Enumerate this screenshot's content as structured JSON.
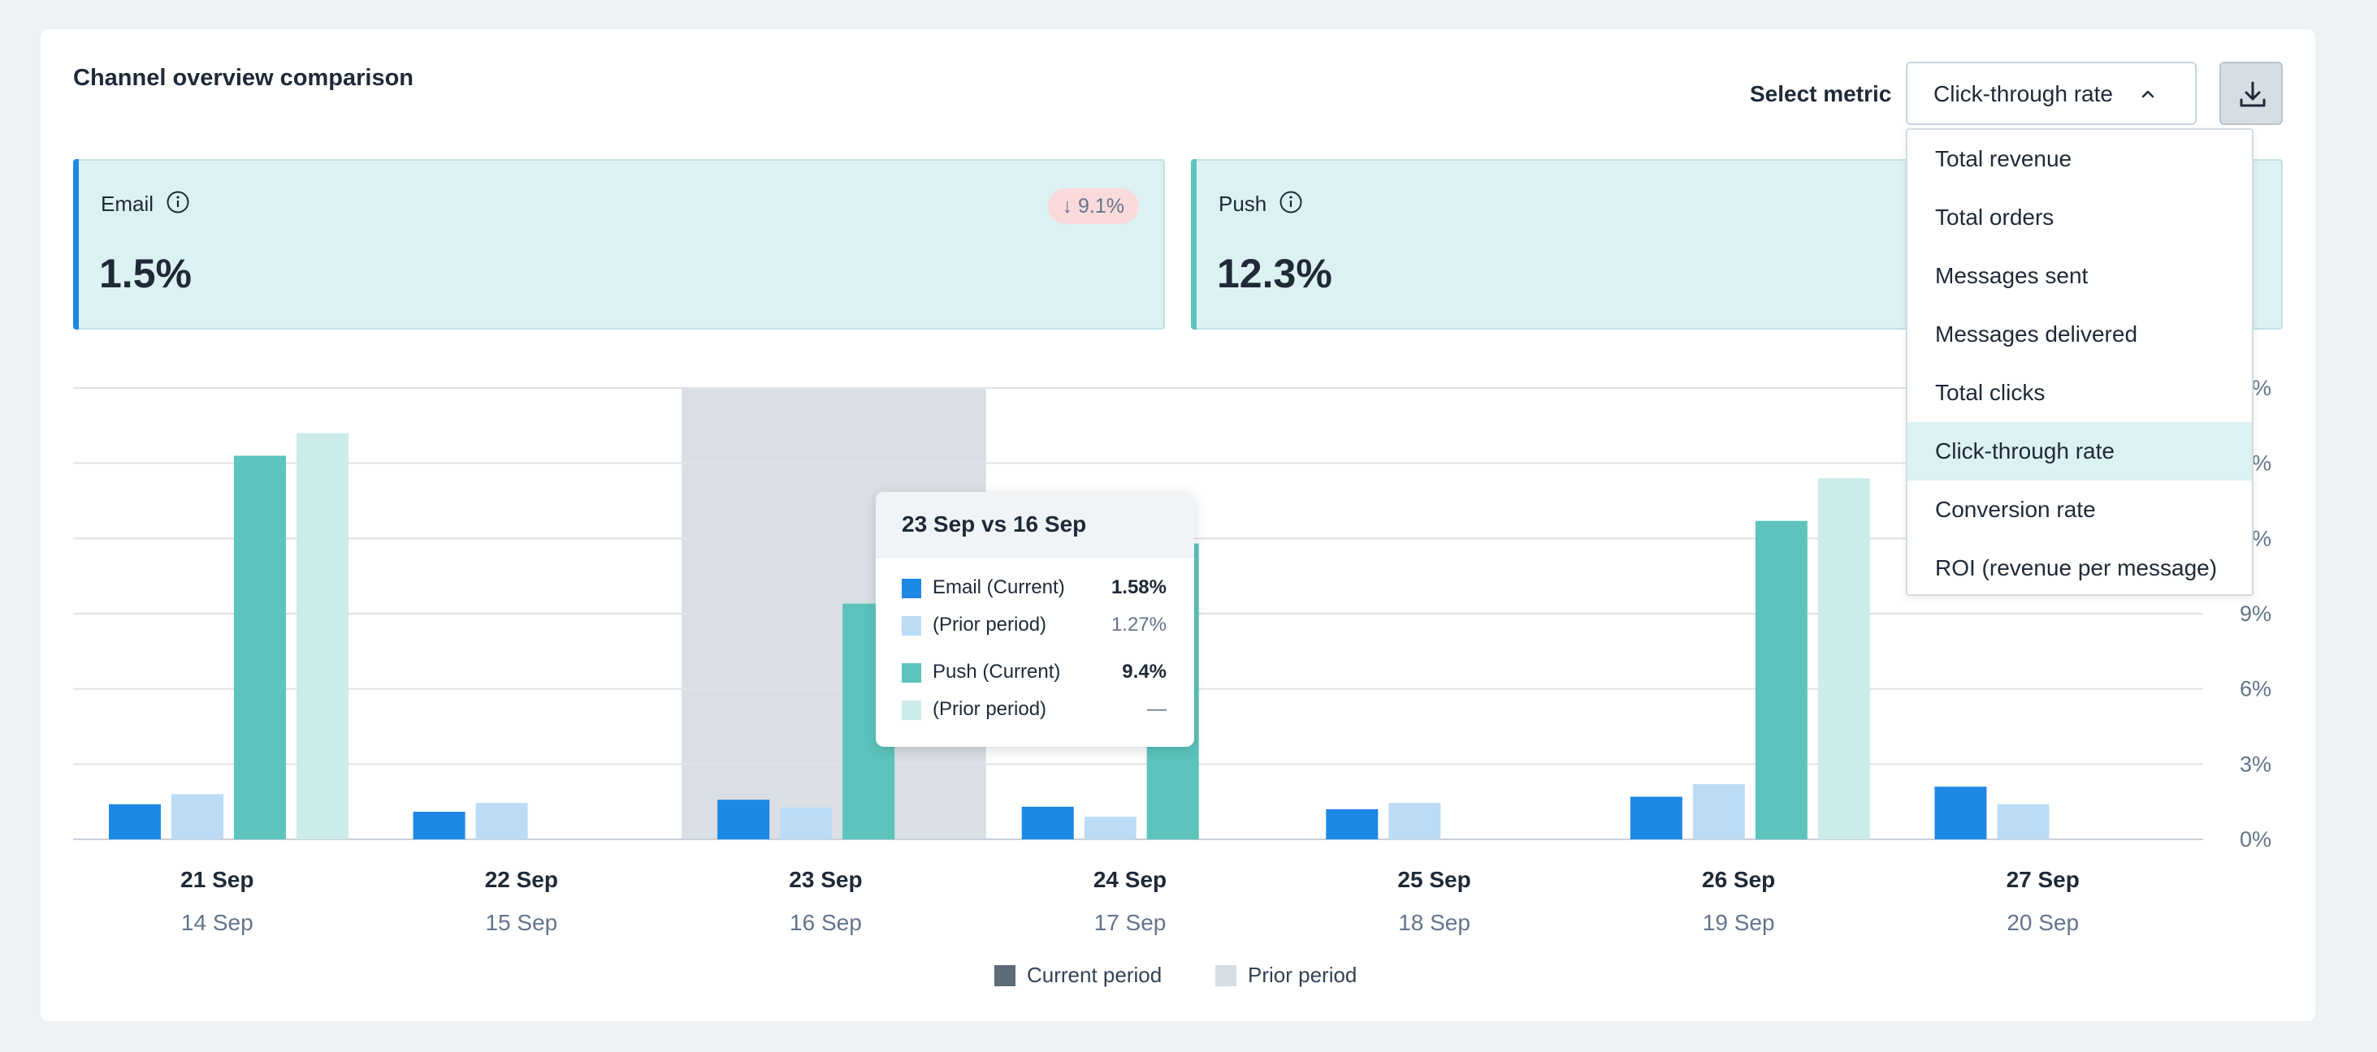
{
  "title": "Channel overview comparison",
  "select_metric_label": "Select metric",
  "selected_metric": "Click-through rate",
  "dropdown_options": [
    "Total revenue",
    "Total orders",
    "Messages sent",
    "Messages delivered",
    "Total clicks",
    "Click-through rate",
    "Conversion rate",
    "ROI (revenue per message)"
  ],
  "kpis": [
    {
      "name": "Email",
      "value": "1.5%",
      "delta": "↓ 9.1%",
      "accent": "#1e88e5"
    },
    {
      "name": "Push",
      "value": "12.3%",
      "accent": "#5cc4bd"
    }
  ],
  "tooltip": {
    "title": "23 Sep vs 16 Sep",
    "rows": [
      {
        "label": "Email (Current)",
        "value": "1.58%",
        "color": "#1e88e5"
      },
      {
        "label": "(Prior period)",
        "value": "1.27%",
        "color": "#bcdcf6"
      },
      {
        "label": "Push (Current)",
        "value": "9.4%",
        "color": "#5cc4bd"
      },
      {
        "label": "(Prior period)",
        "value": "—",
        "color": "#ccecea"
      }
    ]
  },
  "legend": {
    "current": "Current period",
    "prior": "Prior period",
    "current_color": "#5d6b78",
    "prior_color": "#d6dde3"
  },
  "colors": {
    "email_current": "#1e88e5",
    "email_prior": "#bcdcf6",
    "push_current": "#5cc4bd",
    "push_prior": "#ccecea",
    "highlight": "#d9dfe4"
  },
  "chart_data": {
    "type": "bar",
    "categories": [
      "21 Sep",
      "22 Sep",
      "23 Sep",
      "24 Sep",
      "25 Sep",
      "26 Sep",
      "27 Sep"
    ],
    "prior_categories": [
      "14 Sep",
      "15 Sep",
      "16 Sep",
      "17 Sep",
      "18 Sep",
      "19 Sep",
      "20 Sep"
    ],
    "y_ticks": [
      "0%",
      "3%",
      "6%",
      "9%",
      "12%",
      "15%",
      "18%"
    ],
    "ylim": [
      0,
      18
    ],
    "highlighted_category": "23 Sep",
    "series": [
      {
        "name": "Email (Current)",
        "values": [
          1.4,
          1.1,
          1.58,
          1.3,
          1.2,
          1.7,
          2.1
        ]
      },
      {
        "name": "Email (Prior period)",
        "values": [
          1.8,
          1.45,
          1.27,
          0.9,
          1.45,
          2.2,
          1.4
        ]
      },
      {
        "name": "Push (Current)",
        "values": [
          15.3,
          null,
          9.4,
          11.8,
          null,
          12.7,
          null
        ]
      },
      {
        "name": "Push (Prior period)",
        "values": [
          16.2,
          null,
          null,
          null,
          null,
          14.4,
          null
        ]
      }
    ]
  }
}
